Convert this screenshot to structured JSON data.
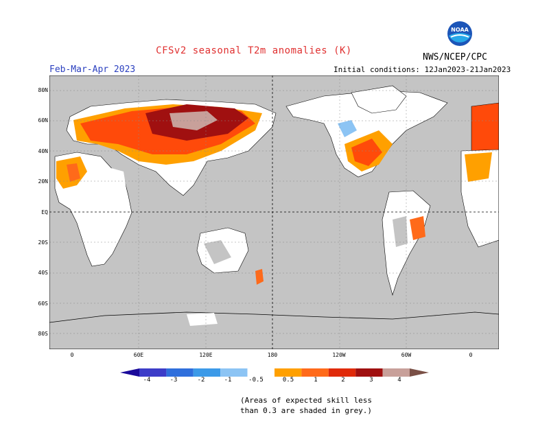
{
  "header": {
    "title": "CFSv2 seasonal T2m anomalies (K)",
    "period": "Feb-Mar-Apr 2023",
    "initial_conditions": "Initial conditions: 12Jan2023-21Jan2023",
    "agency": "NWS/NCEP/CPC",
    "logo_text": "NOAA"
  },
  "map": {
    "lat_labels": [
      "80N",
      "60N",
      "40N",
      "20N",
      "EQ",
      "20S",
      "40S",
      "60S",
      "80S"
    ],
    "lon_labels": [
      "0",
      "60E",
      "120E",
      "180",
      "120W",
      "60W",
      "0"
    ],
    "background_grey": "#c4c4c4",
    "ocean_color": "#c4c4c4"
  },
  "colorbar": {
    "labels": [
      "-4",
      "-3",
      "-2",
      "-1",
      "-0.5",
      "0.5",
      "1",
      "2",
      "3",
      "4"
    ],
    "colors": [
      "#1a0a9a",
      "#3c3cc8",
      "#2f6fdc",
      "#3c9ae8",
      "#8cc4f4",
      "#ffffff",
      "#ffa000",
      "#ff6a1a",
      "#e02a0a",
      "#a01010",
      "#c8a09a",
      "#7a5046"
    ]
  },
  "note": {
    "line1": "(Areas of expected skill less",
    "line2": "than 0.3 are shaded in grey.)"
  }
}
